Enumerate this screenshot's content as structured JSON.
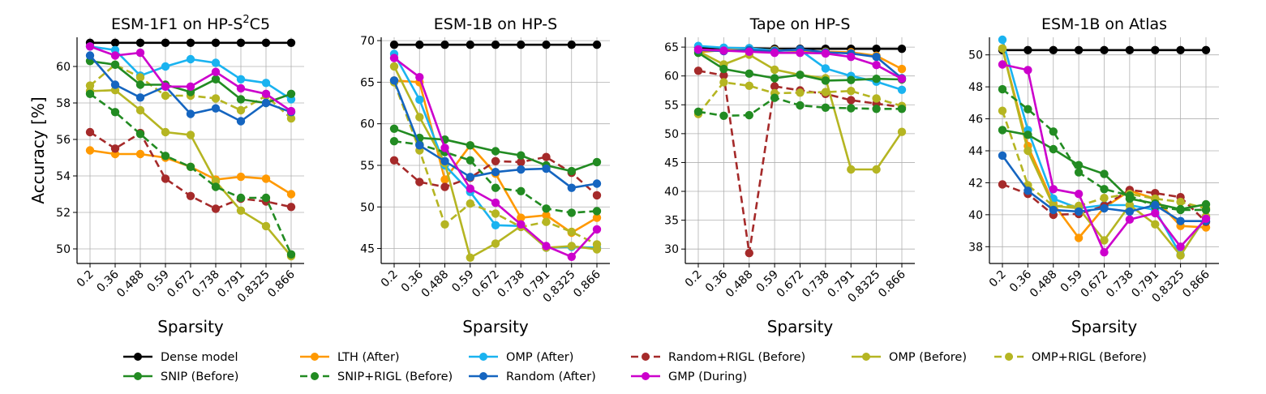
{
  "chart_data": {
    "type": "line",
    "xlabel": "Sparsity",
    "ylabel": "Accuracy [%]",
    "categories": [
      "0.2",
      "0.36",
      "0.488",
      "0.59",
      "0.672",
      "0.738",
      "0.791",
      "0.8325",
      "0.866"
    ],
    "legend": {
      "placement": "bottom",
      "entries": [
        {
          "name": "Dense model",
          "color": "#000000",
          "dash": "solid"
        },
        {
          "name": "LTH (After)",
          "color": "#ff9900",
          "dash": "solid"
        },
        {
          "name": "OMP (After)",
          "color": "#1ab3f0",
          "dash": "solid"
        },
        {
          "name": "Random+RIGL (Before)",
          "color": "#a52a2a",
          "dash": "dashed"
        },
        {
          "name": "OMP (Before)",
          "color": "#b5b522",
          "dash": "solid"
        },
        {
          "name": "OMP+RIGL (Before)",
          "color": "#b5b522",
          "dash": "dashed"
        },
        {
          "name": "SNIP (Before)",
          "color": "#228b22",
          "dash": "solid"
        },
        {
          "name": "SNIP+RIGL (Before)",
          "color": "#228b22",
          "dash": "dashed"
        },
        {
          "name": "Random (After)",
          "color": "#1565c0",
          "dash": "solid"
        },
        {
          "name": "GMP (During)",
          "color": "#cc00cc",
          "dash": "solid"
        }
      ]
    },
    "panels": [
      {
        "title_pre": "ESM-1F1 on HP-S",
        "title_sup": "2",
        "title_post": "C5",
        "show_ylabel": true,
        "ylim": [
          49.2,
          61.6
        ],
        "yticks": [
          50,
          52,
          54,
          56,
          58,
          60
        ],
        "series": [
          {
            "name": "Dense model",
            "values": [
              61.3,
              61.3,
              61.3,
              61.3,
              61.3,
              61.3,
              61.3,
              61.3,
              61.3
            ]
          },
          {
            "name": "LTH (After)",
            "values": [
              55.4,
              55.2,
              55.2,
              55.0,
              54.5,
              53.8,
              53.95,
              53.85,
              53.0
            ]
          },
          {
            "name": "OMP (After)",
            "values": [
              61.1,
              60.9,
              59.5,
              60.0,
              60.4,
              60.2,
              59.3,
              59.1,
              58.2
            ]
          },
          {
            "name": "Random+RIGL (Before)",
            "values": [
              56.4,
              55.5,
              56.35,
              53.85,
              52.9,
              52.2,
              52.75,
              52.6,
              52.3
            ]
          },
          {
            "name": "OMP (Before)",
            "values": [
              58.65,
              58.7,
              57.6,
              56.4,
              56.25,
              53.7,
              52.1,
              51.25,
              49.6
            ]
          },
          {
            "name": "OMP+RIGL (Before)",
            "values": [
              58.95,
              60.1,
              59.4,
              58.4,
              58.4,
              58.25,
              57.6,
              58.4,
              57.15
            ]
          },
          {
            "name": "SNIP (Before)",
            "values": [
              60.3,
              60.1,
              59.0,
              59.0,
              58.6,
              59.3,
              58.2,
              58.0,
              58.5
            ]
          },
          {
            "name": "SNIP+RIGL (Before)",
            "values": [
              58.5,
              57.5,
              56.3,
              55.1,
              54.5,
              53.4,
              52.8,
              52.8,
              49.7
            ]
          },
          {
            "name": "Random (After)",
            "values": [
              60.6,
              59.0,
              58.3,
              58.9,
              57.4,
              57.7,
              57.0,
              58.0,
              57.5
            ]
          },
          {
            "name": "GMP (During)",
            "values": [
              61.1,
              60.6,
              60.75,
              58.9,
              58.9,
              59.7,
              58.8,
              58.5,
              57.55
            ]
          }
        ]
      },
      {
        "title": "ESM-1B on HP-S",
        "ylim": [
          43.2,
          70.4
        ],
        "yticks": [
          45,
          50,
          55,
          60,
          65,
          70
        ],
        "series": [
          {
            "name": "Dense model",
            "values": [
              69.5,
              69.5,
              69.5,
              69.5,
              69.5,
              69.5,
              69.5,
              69.5,
              69.5
            ]
          },
          {
            "name": "LTH (After)",
            "values": [
              65.2,
              65.0,
              53.3,
              57.4,
              54.0,
              48.7,
              49.0,
              46.9,
              48.7
            ]
          },
          {
            "name": "OMP (After)",
            "values": [
              68.4,
              62.9,
              55.0,
              51.8,
              47.8,
              47.7,
              45.1,
              45.2,
              45.1
            ]
          },
          {
            "name": "Random+RIGL (Before)",
            "values": [
              55.6,
              53.0,
              52.4,
              53.5,
              55.5,
              55.4,
              56.0,
              54.1,
              51.4
            ]
          },
          {
            "name": "OMP (Before)",
            "values": [
              66.9,
              60.8,
              55.3,
              43.9,
              45.6,
              47.7,
              45.1,
              45.3,
              44.9
            ]
          },
          {
            "name": "OMP+RIGL (Before)",
            "values": [
              65.0,
              56.8,
              47.9,
              50.4,
              49.2,
              47.6,
              48.2,
              47.0,
              45.5
            ]
          },
          {
            "name": "SNIP (Before)",
            "values": [
              59.4,
              58.3,
              58.1,
              57.4,
              56.7,
              56.2,
              55.0,
              54.3,
              55.4
            ]
          },
          {
            "name": "SNIP+RIGL (Before)",
            "values": [
              57.9,
              57.5,
              56.6,
              55.6,
              52.3,
              51.9,
              49.8,
              49.3,
              49.5
            ]
          },
          {
            "name": "Random (After)",
            "values": [
              65.2,
              57.4,
              55.5,
              53.6,
              54.2,
              54.5,
              54.6,
              52.3,
              52.8
            ]
          },
          {
            "name": "GMP (During)",
            "values": [
              67.9,
              65.6,
              57.1,
              52.2,
              50.5,
              47.9,
              45.3,
              44.0,
              47.3
            ]
          }
        ]
      },
      {
        "title": "Tape on HP-S",
        "ylim": [
          27.5,
          66.7
        ],
        "yticks": [
          30,
          35,
          40,
          45,
          50,
          55,
          60,
          65
        ],
        "series": [
          {
            "name": "Dense model",
            "values": [
              64.9,
              64.8,
              64.8,
              64.7,
              64.7,
              64.7,
              64.7,
              64.7,
              64.7
            ]
          },
          {
            "name": "LTH (After)",
            "values": [
              64.1,
              64.5,
              64.6,
              64.5,
              64.3,
              64.2,
              64.1,
              63.5,
              61.2
            ]
          },
          {
            "name": "OMP (After)",
            "values": [
              65.2,
              64.9,
              64.8,
              64.4,
              64.5,
              61.3,
              60.0,
              59.0,
              57.6
            ]
          },
          {
            "name": "Random+RIGL (Before)",
            "values": [
              60.9,
              60.1,
              29.3,
              58.2,
              57.5,
              56.9,
              55.8,
              55.2,
              54.6
            ]
          },
          {
            "name": "OMP (Before)",
            "values": [
              64.3,
              62.0,
              63.7,
              61.1,
              60.2,
              59.6,
              43.8,
              43.8,
              50.3
            ]
          },
          {
            "name": "OMP+RIGL (Before)",
            "values": [
              53.4,
              58.9,
              58.3,
              57.0,
              57.1,
              57.2,
              57.4,
              56.1,
              54.8
            ]
          },
          {
            "name": "SNIP (Before)",
            "values": [
              64.0,
              61.2,
              60.4,
              59.6,
              60.2,
              59.2,
              59.3,
              59.5,
              59.4
            ]
          },
          {
            "name": "SNIP+RIGL (Before)",
            "values": [
              53.8,
              53.1,
              53.2,
              56.2,
              54.9,
              54.5,
              54.4,
              54.3,
              54.3
            ]
          },
          {
            "name": "Random (After)",
            "values": [
              64.5,
              64.3,
              64.5,
              64.3,
              64.6,
              64.1,
              63.9,
              63.3,
              59.6
            ]
          },
          {
            "name": "GMP (During)",
            "values": [
              64.6,
              64.4,
              64.2,
              64.0,
              64.0,
              63.9,
              63.3,
              61.9,
              59.5
            ]
          }
        ]
      },
      {
        "title": "ESM-1B on Atlas",
        "ylim": [
          36.95,
          51.1
        ],
        "yticks": [
          38,
          40,
          42,
          44,
          46,
          48,
          50
        ],
        "series": [
          {
            "name": "Dense model",
            "values": [
              50.3,
              50.3,
              50.3,
              50.3,
              50.3,
              50.3,
              50.3,
              50.3,
              50.3
            ]
          },
          {
            "name": "LTH (After)",
            "values": [
              50.4,
              44.3,
              40.7,
              38.55,
              40.45,
              41.5,
              41.0,
              39.3,
              39.2
            ]
          },
          {
            "name": "OMP (After)",
            "values": [
              50.95,
              45.3,
              41.0,
              40.4,
              40.6,
              40.6,
              40.3,
              37.5,
              39.85
            ]
          },
          {
            "name": "Random+RIGL (Before)",
            "values": [
              41.9,
              41.3,
              40.0,
              40.05,
              40.55,
              41.55,
              41.35,
              41.1,
              39.55
            ]
          },
          {
            "name": "OMP (Before)",
            "values": [
              50.4,
              44.0,
              40.55,
              40.4,
              38.4,
              40.6,
              39.4,
              37.45,
              39.9
            ]
          },
          {
            "name": "OMP+RIGL (Before)",
            "values": [
              46.5,
              41.85,
              40.55,
              40.55,
              41.05,
              41.3,
              41.0,
              40.8,
              40.4
            ]
          },
          {
            "name": "SNIP (Before)",
            "values": [
              45.3,
              45.0,
              44.1,
              43.1,
              42.55,
              41.0,
              40.7,
              40.35,
              40.65
            ]
          },
          {
            "name": "SNIP+RIGL (Before)",
            "values": [
              47.85,
              46.6,
              45.2,
              42.65,
              41.6,
              41.2,
              40.5,
              40.3,
              40.3
            ]
          },
          {
            "name": "Random (After)",
            "values": [
              43.7,
              41.5,
              40.3,
              40.2,
              40.4,
              40.2,
              40.6,
              39.6,
              39.6
            ]
          },
          {
            "name": "GMP (During)",
            "values": [
              49.4,
              49.05,
              41.6,
              41.3,
              37.65,
              39.7,
              40.1,
              38.0,
              39.75
            ]
          }
        ]
      }
    ]
  }
}
